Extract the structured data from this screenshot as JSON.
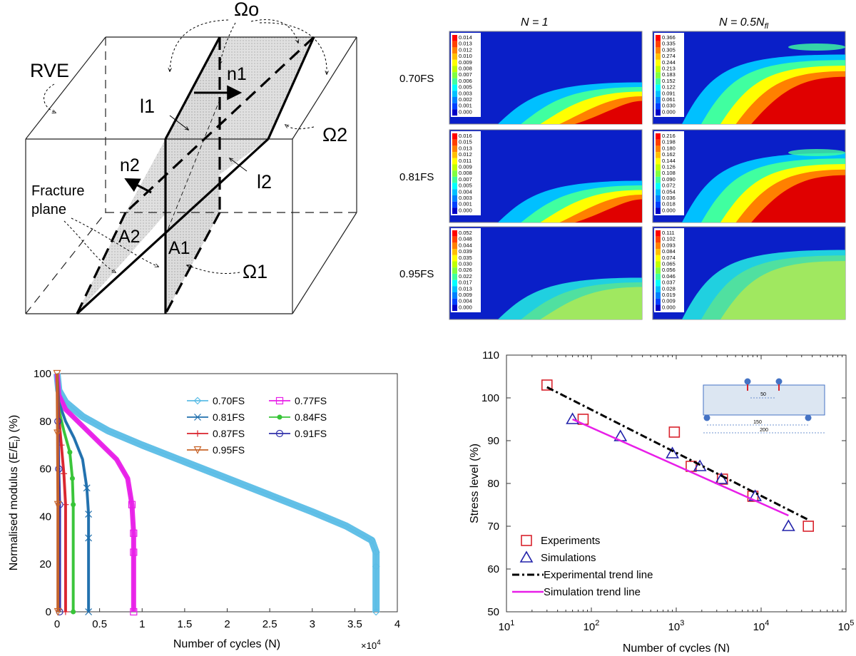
{
  "diagram": {
    "rve": "RVE",
    "omega_o": "Ωo",
    "omega_1": "Ω1",
    "omega_2": "Ω2",
    "n1": "n1",
    "n2": "n2",
    "l1": "l1",
    "l2": "l2",
    "a1": "A1",
    "a2": "A2",
    "fracture_line1": "Fracture",
    "fracture_line2": "plane"
  },
  "contours": {
    "col_header_1": "N = 1",
    "col_header_2": "N = 0.5N",
    "col_header_2_sub": "fl",
    "rows": [
      {
        "label": "0.70FS",
        "left_legend": [
          "0.014",
          "0.013",
          "0.012",
          "0.010",
          "0.009",
          "0.008",
          "0.007",
          "0.006",
          "0.005",
          "0.003",
          "0.002",
          "0.001",
          "0.000"
        ],
        "right_legend": [
          "0.366",
          "0.335",
          "0.305",
          "0.274",
          "0.244",
          "0.213",
          "0.183",
          "0.152",
          "0.122",
          "0.091",
          "0.061",
          "0.030",
          "0.000"
        ]
      },
      {
        "label": "0.81FS",
        "left_legend": [
          "0.016",
          "0.015",
          "0.013",
          "0.012",
          "0.011",
          "0.009",
          "0.008",
          "0.007",
          "0.005",
          "0.004",
          "0.003",
          "0.001",
          "0.000"
        ],
        "right_legend": [
          "0.216",
          "0.198",
          "0.180",
          "0.162",
          "0.144",
          "0.126",
          "0.108",
          "0.090",
          "0.072",
          "0.054",
          "0.036",
          "0.018",
          "0.000"
        ]
      },
      {
        "label": "0.95FS",
        "left_legend": [
          "0.052",
          "0.048",
          "0.044",
          "0.039",
          "0.035",
          "0.030",
          "0.026",
          "0.022",
          "0.017",
          "0.013",
          "0.009",
          "0.004",
          "0.000"
        ],
        "right_legend": [
          "0.111",
          "0.102",
          "0.093",
          "0.084",
          "0.074",
          "0.065",
          "0.056",
          "0.046",
          "0.037",
          "0.028",
          "0.019",
          "0.009",
          "0.000"
        ]
      }
    ]
  },
  "chart_data": [
    {
      "type": "line",
      "title": "",
      "xlabel": "Number of cycles (N)",
      "ylabel": "Normalised modulus (E/E",
      "ylabel_sub": "i",
      "ylabel_end": ") (%)",
      "x_multiplier": "×10",
      "x_multiplier_exp": "4",
      "xlim": [
        0,
        4
      ],
      "ylim": [
        0,
        100
      ],
      "x_ticks": [
        "0",
        "0.5",
        "1",
        "1.5",
        "2",
        "2.5",
        "3",
        "3.5",
        "4"
      ],
      "y_ticks": [
        "0",
        "20",
        "40",
        "60",
        "80",
        "100"
      ],
      "legend": "top-right",
      "series": [
        {
          "name": "0.70FS",
          "color": "#5bbde6",
          "marker": "diamond",
          "x": [
            0,
            0.02,
            0.1,
            0.3,
            0.6,
            1.0,
            1.5,
            2.0,
            2.5,
            3.0,
            3.4,
            3.7,
            3.75,
            3.75,
            3.75
          ],
          "y": [
            100,
            93,
            88,
            82,
            76,
            70,
            63,
            56,
            49,
            42,
            36,
            30,
            25,
            19,
            0
          ]
        },
        {
          "name": "0.77FS",
          "color": "#e81ee8",
          "marker": "square",
          "x": [
            0,
            0.02,
            0.1,
            0.3,
            0.5,
            0.7,
            0.83,
            0.88,
            0.9,
            0.9,
            0.9
          ],
          "y": [
            100,
            91,
            85,
            78,
            71,
            64,
            56,
            45,
            33,
            25,
            0
          ]
        },
        {
          "name": "0.81FS",
          "color": "#1f6fad",
          "marker": "x",
          "x": [
            0,
            0.02,
            0.1,
            0.2,
            0.3,
            0.35,
            0.37,
            0.37,
            0.37
          ],
          "y": [
            100,
            88,
            80,
            73,
            64,
            52,
            41,
            31,
            0
          ]
        },
        {
          "name": "0.84FS",
          "color": "#37c437",
          "marker": "star",
          "x": [
            0,
            0.02,
            0.08,
            0.15,
            0.18,
            0.19,
            0.19
          ],
          "y": [
            100,
            85,
            76,
            67,
            56,
            45,
            0
          ]
        },
        {
          "name": "0.87FS",
          "color": "#d9232d",
          "marker": "plus",
          "x": [
            0,
            0.02,
            0.05,
            0.08,
            0.1,
            0.1
          ],
          "y": [
            100,
            82,
            70,
            58,
            45,
            0
          ]
        },
        {
          "name": "0.91FS",
          "color": "#3030aa",
          "marker": "circle",
          "x": [
            0,
            0.01,
            0.02,
            0.03,
            0.03
          ],
          "y": [
            100,
            80,
            60,
            45,
            0
          ]
        },
        {
          "name": "0.95FS",
          "color": "#c8642a",
          "marker": "triangle-down",
          "x": [
            0,
            0.005,
            0.01,
            0.01
          ],
          "y": [
            100,
            75,
            45,
            0
          ]
        }
      ]
    },
    {
      "type": "scatter",
      "title": "",
      "xlabel": "Number of cycles (N)",
      "ylabel": "Stress level (%)",
      "xscale": "log",
      "xlim": [
        10,
        100000
      ],
      "ylim": [
        50,
        110
      ],
      "x_ticks": [
        "10",
        "10",
        "10",
        "10",
        "10"
      ],
      "x_tick_exps": [
        "1",
        "2",
        "3",
        "4",
        "5"
      ],
      "y_ticks": [
        "50",
        "60",
        "70",
        "80",
        "90",
        "100",
        "110"
      ],
      "legend": "bottom-left",
      "series": [
        {
          "name": "Experiments",
          "style": "marker",
          "marker": "square",
          "color": "#d9232d",
          "x": [
            30,
            80,
            950,
            1500,
            3500,
            8000,
            36000
          ],
          "y": [
            103,
            95,
            92,
            84,
            81,
            77,
            70
          ]
        },
        {
          "name": "Simulations",
          "style": "marker",
          "marker": "triangle",
          "color": "#2222aa",
          "x": [
            60,
            220,
            900,
            1900,
            3400,
            8500,
            21000
          ],
          "y": [
            95,
            91,
            87,
            84,
            81,
            77,
            70
          ]
        },
        {
          "name": "Experimental trend line",
          "style": "dashdot",
          "color": "#000000",
          "x": [
            30,
            36000
          ],
          "y": [
            102.5,
            71.5
          ]
        },
        {
          "name": "Simulation trend line",
          "style": "line",
          "color": "#e81ee8",
          "x": [
            60,
            21000
          ],
          "y": [
            95,
            72.5
          ]
        }
      ],
      "inset": {
        "dim_50": "50",
        "dim_150": "150",
        "dim_200": "200"
      }
    }
  ]
}
